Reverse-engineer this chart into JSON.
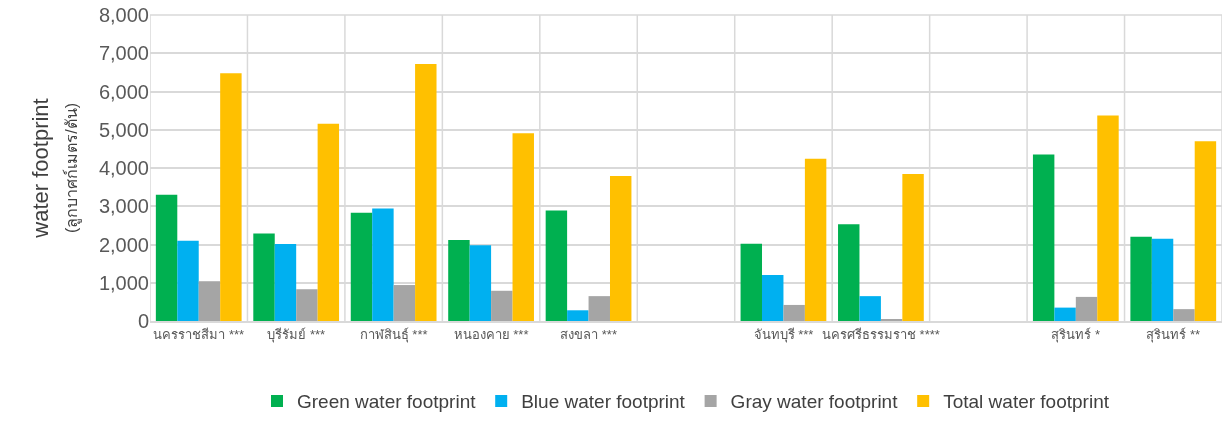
{
  "chart_data": {
    "type": "bar",
    "ylabel": "water footprint\n(ลูกบาศก์เมตร/ตัน)",
    "categories": [
      "นครราชสีมา ***",
      "บุรีรัมย์ ***",
      "กาฬสินธุ์ ***",
      "หนองคาย ***",
      "สงขลา ***",
      null,
      "จันทบุรี ***",
      "นครศรีธรรมราช ****",
      null,
      "สุรินทร์ *",
      "สุรินทร์ **"
    ],
    "series": [
      {
        "name": "Green water footprint",
        "color": "#00b050",
        "values": [
          3300,
          2290,
          2830,
          2120,
          2890,
          null,
          2020,
          2530,
          null,
          4350,
          2200
        ]
      },
      {
        "name": "Blue water footprint",
        "color": "#00b0f0",
        "values": [
          2100,
          2010,
          2940,
          1980,
          280,
          null,
          1200,
          650,
          null,
          350,
          2150
        ]
      },
      {
        "name": "Gray water footprint",
        "color": "#a5a5a5",
        "values": [
          1040,
          830,
          940,
          790,
          650,
          null,
          420,
          40,
          null,
          630,
          310
        ]
      },
      {
        "name": "Total water footprint",
        "color": "#ffc000",
        "values": [
          6480,
          5160,
          6720,
          4910,
          3790,
          null,
          4240,
          3840,
          null,
          5370,
          4700
        ]
      }
    ],
    "ylim": [
      0,
      8000
    ],
    "yticks": [
      {
        "value": 0,
        "label": "0"
      },
      {
        "value": 1000,
        "label": "1,000"
      },
      {
        "value": 2000,
        "label": "2,000"
      },
      {
        "value": 3000,
        "label": "3,000"
      },
      {
        "value": 4000,
        "label": "4,000"
      },
      {
        "value": 5000,
        "label": "5,000"
      },
      {
        "value": 6000,
        "label": "6,000"
      },
      {
        "value": 7000,
        "label": "7,000"
      },
      {
        "value": 8000,
        "label": "8,000"
      }
    ],
    "grid": true,
    "legend": "bottom"
  }
}
